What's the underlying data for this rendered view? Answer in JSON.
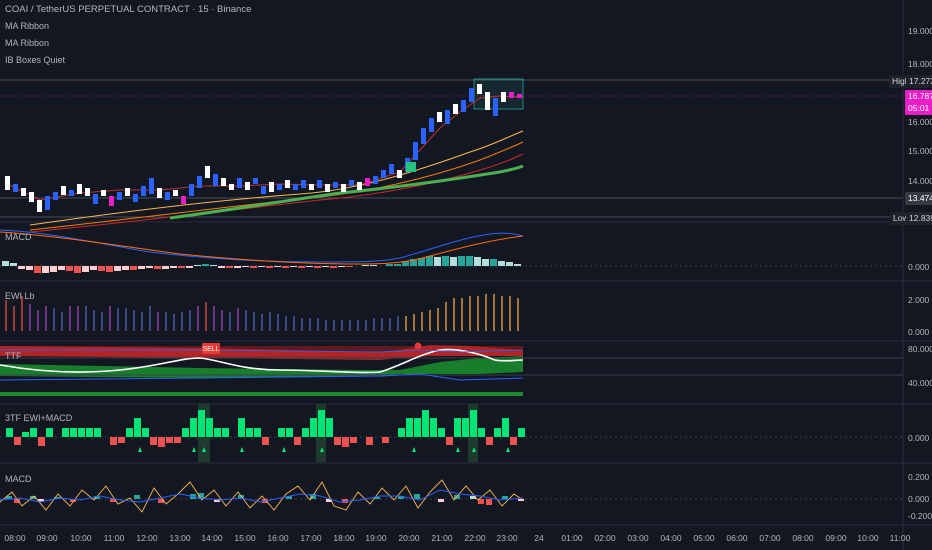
{
  "header": {
    "title": "COAI / TetherUS PERPETUAL CONTRACT · 15 · Binance",
    "indicators": [
      "MA Ribbon",
      "MA Ribbon",
      "IB Boxes Quiet"
    ]
  },
  "price_axis": {
    "ticks": [
      "19.000",
      "18.000",
      "16.000",
      "15.000",
      "14.000"
    ],
    "high_label": "High",
    "high_value": "17.273",
    "last_value": "16.787",
    "countdown": "05:01",
    "mark_value": "13.474",
    "low_label": "Low",
    "low_value": "12.839"
  },
  "panes": {
    "macd1": {
      "label": "MACD",
      "ticks": [
        "0.000"
      ]
    },
    "ewi": {
      "label": "EWI Lb",
      "ticks": [
        "2.000",
        "0.000"
      ]
    },
    "ttf": {
      "label": "TTF",
      "signal": "SELL",
      "ticks": [
        "80.000",
        "40.000"
      ]
    },
    "tf3": {
      "label": "3TF EWI+MACD",
      "ticks": [
        "0.000"
      ]
    },
    "macd2": {
      "label": "MACD",
      "ticks": [
        "0.200",
        "0.000",
        "-0.200"
      ]
    }
  },
  "time_axis": [
    "08:00",
    "09:00",
    "10:00",
    "11:00",
    "12:00",
    "13:00",
    "14:00",
    "15:00",
    "16:00",
    "17:00",
    "18:00",
    "19:00",
    "20:00",
    "21:00",
    "22:00",
    "23:00",
    "24",
    "01:00",
    "02:00",
    "03:00",
    "04:00",
    "05:00",
    "06:00",
    "07:00",
    "08:00",
    "09:00",
    "10:00",
    "11:00"
  ],
  "colors": {
    "background": "#131722",
    "bull_candle": "#2962ff",
    "bear_candle": "#ffffff",
    "highlight": "#e91ec8",
    "ma_green": "#4caf50",
    "ma_orange": "#f57c00",
    "ma_gold": "#ffb74d",
    "teal": "#26a69a",
    "red": "#ef5350"
  }
}
